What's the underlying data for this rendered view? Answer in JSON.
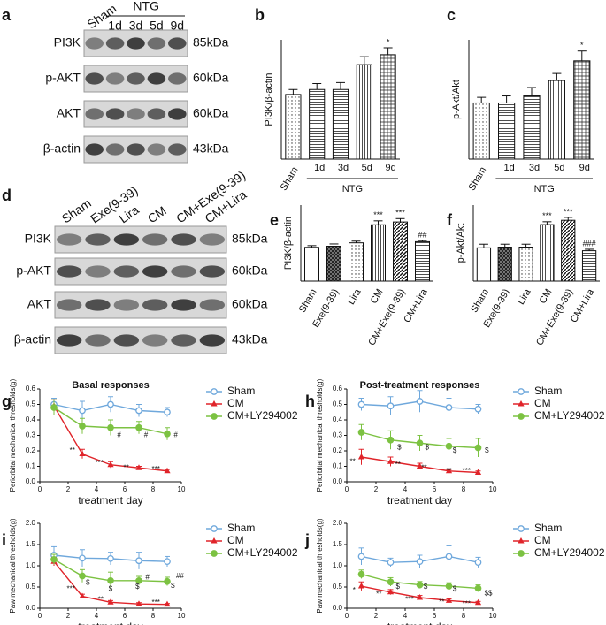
{
  "blots": [
    {
      "panel": "a",
      "lanes": [
        "Sham",
        "1d",
        "3d",
        "5d",
        "9d"
      ],
      "group": {
        "label": "NTG",
        "from": "1d",
        "to": "9d"
      },
      "rows": [
        {
          "protein": "PI3K",
          "size": "85kDa"
        },
        {
          "protein": "p-AKT",
          "size": "60kDa"
        },
        {
          "protein": "AKT",
          "size": "60kDa"
        },
        {
          "protein": "β-actin",
          "size": "43kDa"
        }
      ]
    },
    {
      "panel": "d",
      "lanes": [
        "Sham",
        "Exe(9-39)",
        "Lira",
        "CM",
        "CM+Exe(9-39)",
        "CM+Lira"
      ],
      "rows": [
        {
          "protein": "PI3K",
          "size": "85kDa"
        },
        {
          "protein": "p-AKT",
          "size": "60kDa"
        },
        {
          "protein": "AKT",
          "size": "60kDa"
        },
        {
          "protein": "β-actin",
          "size": "43kDa"
        }
      ]
    }
  ],
  "chart_data": [
    {
      "type": "bar",
      "panel": "b",
      "ylabel": "PI3K/β-actin",
      "categories": [
        "Sham",
        "1d",
        "3d",
        "5d",
        "9d"
      ],
      "values": [
        0.65,
        0.7,
        0.7,
        0.95,
        1.05
      ],
      "errors": [
        0.05,
        0.06,
        0.07,
        0.08,
        0.07
      ],
      "fills": [
        "dots",
        "hlines",
        "hlines",
        "vlines",
        "grid"
      ],
      "ylim": [
        0,
        1.2
      ],
      "group": {
        "label": "NTG",
        "from": "1d",
        "to": "9d"
      },
      "annotations": [
        {
          "text": "*",
          "category": "9d"
        }
      ]
    },
    {
      "type": "bar",
      "panel": "c",
      "ylabel": "p-Akt/Akt",
      "categories": [
        "Sham",
        "1d",
        "3d",
        "5d",
        "9d"
      ],
      "values": [
        0.4,
        0.4,
        0.45,
        0.56,
        0.7
      ],
      "errors": [
        0.04,
        0.05,
        0.06,
        0.05,
        0.07
      ],
      "fills": [
        "dots",
        "hlines",
        "hlines",
        "vlines",
        "grid"
      ],
      "ylim": [
        0,
        0.85
      ],
      "group": {
        "label": "NTG",
        "from": "1d",
        "to": "9d"
      },
      "annotations": [
        {
          "text": "*",
          "category": "9d"
        }
      ]
    },
    {
      "type": "bar",
      "panel": "e",
      "ylabel": "PI3K/β-actin",
      "categories": [
        "Sham",
        "Exe(9-39)",
        "Lira",
        "CM",
        "CM+Exe(9-39)",
        "CM+Lira"
      ],
      "values": [
        0.6,
        0.62,
        0.68,
        1.0,
        1.05,
        0.7
      ],
      "errors": [
        0.03,
        0.04,
        0.03,
        0.07,
        0.06,
        0.02
      ],
      "fills": [
        "white",
        "cross",
        "dots",
        "vlines",
        "diag",
        "hlines"
      ],
      "ylim": [
        0,
        1.35
      ],
      "annotations": [
        {
          "text": "***",
          "category": "CM"
        },
        {
          "text": "***",
          "category": "CM+Exe(9-39)"
        },
        {
          "text": "##",
          "category": "CM+Lira"
        }
      ]
    },
    {
      "type": "bar",
      "panel": "f",
      "ylabel": "p-Akt/Akt",
      "categories": [
        "Sham",
        "Exe(9-39)",
        "Lira",
        "CM",
        "CM+Exe(9-39)",
        "CM+Lira"
      ],
      "values": [
        0.46,
        0.47,
        0.47,
        0.78,
        0.84,
        0.42
      ],
      "errors": [
        0.05,
        0.04,
        0.04,
        0.04,
        0.04,
        0.02
      ],
      "fills": [
        "white",
        "cross",
        "dots",
        "vlines",
        "diag",
        "hlines"
      ],
      "ylim": [
        0,
        1.05
      ],
      "annotations": [
        {
          "text": "***",
          "category": "CM"
        },
        {
          "text": "***",
          "category": "CM+Exe(9-39)"
        },
        {
          "text": "###",
          "category": "CM+Lira"
        }
      ]
    },
    {
      "type": "line",
      "panel": "g",
      "title": "Basal responses",
      "xlabel": "treatment day",
      "ylabel": "Periorbital mechanical thresholds(g)",
      "x": [
        1,
        3,
        5,
        7,
        9
      ],
      "xlim": [
        0,
        10
      ],
      "xticks": [
        0,
        2,
        4,
        6,
        8,
        10
      ],
      "ylim": [
        0,
        0.6
      ],
      "yticks": [
        {
          "value": 0,
          "label": "0.0"
        },
        0.1,
        0.2,
        0.3,
        0.4,
        0.5,
        0.6
      ],
      "series": [
        {
          "name": "Sham",
          "color": "#6fa8dc",
          "marker": "circle-open",
          "values": [
            0.5,
            0.46,
            0.5,
            0.46,
            0.45
          ],
          "errors": [
            0.04,
            0.06,
            0.05,
            0.04,
            0.03
          ]
        },
        {
          "name": "CM",
          "color": "#e0242a",
          "marker": "triangle",
          "values": [
            0.49,
            0.18,
            0.11,
            0.09,
            0.07
          ],
          "errors": [
            0.04,
            0.03,
            0.02,
            0.01,
            0.01
          ]
        },
        {
          "name": "CM+LY294002",
          "color": "#7cc242",
          "marker": "circle",
          "values": [
            0.48,
            0.36,
            0.35,
            0.35,
            0.31
          ],
          "errors": [
            0.05,
            0.05,
            0.05,
            0.04,
            0.04
          ]
        }
      ],
      "annotations": [
        {
          "text": "**",
          "x": 2.3,
          "y": 0.2
        },
        {
          "text": "***",
          "x": 4.2,
          "y": 0.12
        },
        {
          "text": "**",
          "x": 6.1,
          "y": 0.09
        },
        {
          "text": "***",
          "x": 8.2,
          "y": 0.08
        },
        {
          "text": "#",
          "x": 5.6,
          "y": 0.3
        },
        {
          "text": "#",
          "x": 7.5,
          "y": 0.3
        },
        {
          "text": "#",
          "x": 9.6,
          "y": 0.3
        }
      ]
    },
    {
      "type": "line",
      "panel": "h",
      "title": "Post-treatment responses",
      "xlabel": "treatment day",
      "ylabel": "Periorbital mechanical thresholds(g)",
      "x": [
        1,
        3,
        5,
        7,
        9
      ],
      "xlim": [
        0,
        10
      ],
      "xticks": [
        0,
        2,
        4,
        6,
        8,
        10
      ],
      "ylim": [
        0,
        0.6
      ],
      "yticks": [
        {
          "value": 0,
          "label": "0.0"
        },
        0.1,
        0.2,
        0.3,
        0.4,
        0.5,
        0.6
      ],
      "series": [
        {
          "name": "Sham",
          "color": "#6fa8dc",
          "marker": "circle-open",
          "values": [
            0.5,
            0.49,
            0.52,
            0.48,
            0.47
          ],
          "errors": [
            0.04,
            0.06,
            0.07,
            0.06,
            0.03
          ]
        },
        {
          "name": "CM",
          "color": "#e0242a",
          "marker": "triangle",
          "values": [
            0.16,
            0.13,
            0.1,
            0.07,
            0.06
          ],
          "errors": [
            0.05,
            0.03,
            0.02,
            0.01,
            0.01
          ]
        },
        {
          "name": "CM+LY294002",
          "color": "#7cc242",
          "marker": "circle",
          "values": [
            0.32,
            0.27,
            0.25,
            0.23,
            0.22
          ],
          "errors": [
            0.05,
            0.06,
            0.05,
            0.05,
            0.06
          ]
        }
      ],
      "annotations": [
        {
          "text": "**",
          "x": 0.4,
          "y": 0.13
        },
        {
          "text": "**",
          "x": 3.5,
          "y": 0.11
        },
        {
          "text": "**",
          "x": 5.3,
          "y": 0.09
        },
        {
          "text": "**",
          "x": 7.0,
          "y": 0.07
        },
        {
          "text": "***",
          "x": 8.2,
          "y": 0.07
        },
        {
          "text": "$",
          "x": 3.6,
          "y": 0.22
        },
        {
          "text": "$",
          "x": 5.5,
          "y": 0.22
        },
        {
          "text": "$",
          "x": 7.4,
          "y": 0.2
        },
        {
          "text": "$",
          "x": 9.6,
          "y": 0.2
        }
      ]
    },
    {
      "type": "line",
      "panel": "i",
      "xlabel": "treatment day",
      "ylabel": "Paw mechanical thresholds(g)",
      "x": [
        1,
        3,
        5,
        7,
        9
      ],
      "xlim": [
        0,
        10
      ],
      "xticks": [
        0,
        2,
        4,
        6,
        8,
        10
      ],
      "ylim": [
        0,
        2
      ],
      "yticks": [
        {
          "value": 0,
          "label": "0.0"
        },
        0.5,
        {
          "value": 1,
          "label": "1.0"
        },
        1.5,
        {
          "value": 2,
          "label": "2.0"
        }
      ],
      "series": [
        {
          "name": "Sham",
          "color": "#6fa8dc",
          "marker": "circle-open",
          "values": [
            1.25,
            1.18,
            1.17,
            1.12,
            1.1
          ],
          "errors": [
            0.2,
            0.2,
            0.15,
            0.2,
            0.12
          ]
        },
        {
          "name": "CM",
          "color": "#e0242a",
          "marker": "triangle",
          "values": [
            1.1,
            0.28,
            0.14,
            0.1,
            0.09
          ],
          "errors": [
            0.1,
            0.05,
            0.04,
            0.03,
            0.02
          ]
        },
        {
          "name": "CM+LY294002",
          "color": "#7cc242",
          "marker": "circle",
          "values": [
            1.15,
            0.76,
            0.65,
            0.65,
            0.63
          ],
          "errors": [
            0.12,
            0.15,
            0.2,
            0.1,
            0.1
          ]
        }
      ],
      "annotations": [
        {
          "text": "***",
          "x": 2.2,
          "y": 0.45
        },
        {
          "text": "**",
          "x": 4.3,
          "y": 0.2
        },
        {
          "text": "***",
          "x": 8.2,
          "y": 0.13
        },
        {
          "text": "$",
          "x": 3.4,
          "y": 0.6
        },
        {
          "text": "$",
          "x": 5,
          "y": 0.45
        },
        {
          "text": "$",
          "x": 6.9,
          "y": 0.5
        },
        {
          "text": "#",
          "x": 7.6,
          "y": 0.72
        },
        {
          "text": "$",
          "x": 9.4,
          "y": 0.52
        },
        {
          "text": "##",
          "x": 9.9,
          "y": 0.75
        }
      ]
    },
    {
      "type": "line",
      "panel": "j",
      "xlabel": "treatment day",
      "ylabel": "Paw mechanical thresholds(g)",
      "x": [
        1,
        3,
        5,
        7,
        9
      ],
      "xlim": [
        0,
        10
      ],
      "xticks": [
        0,
        2,
        4,
        6,
        8,
        10
      ],
      "ylim": [
        0,
        2
      ],
      "yticks": [
        {
          "value": 0,
          "label": "0.0"
        },
        0.5,
        {
          "value": 1,
          "label": "1.0"
        },
        1.5,
        {
          "value": 2,
          "label": "2.0"
        }
      ],
      "series": [
        {
          "name": "Sham",
          "color": "#6fa8dc",
          "marker": "circle-open",
          "values": [
            1.22,
            1.08,
            1.1,
            1.22,
            1.08
          ],
          "errors": [
            0.2,
            0.1,
            0.15,
            0.25,
            0.12
          ]
        },
        {
          "name": "CM",
          "color": "#e0242a",
          "marker": "triangle",
          "values": [
            0.52,
            0.38,
            0.25,
            0.18,
            0.13
          ],
          "errors": [
            0.1,
            0.06,
            0.05,
            0.04,
            0.03
          ]
        },
        {
          "name": "CM+LY294002",
          "color": "#7cc242",
          "marker": "circle",
          "values": [
            0.8,
            0.62,
            0.55,
            0.52,
            0.47
          ],
          "errors": [
            0.1,
            0.1,
            0.08,
            0.08,
            0.08
          ]
        }
      ],
      "annotations": [
        {
          "text": "*",
          "x": 0.5,
          "y": 0.42
        },
        {
          "text": "**",
          "x": 2.2,
          "y": 0.32
        },
        {
          "text": "***",
          "x": 4.3,
          "y": 0.2
        },
        {
          "text": "**",
          "x": 6.5,
          "y": 0.14
        },
        {
          "text": "***",
          "x": 8.2,
          "y": 0.1
        },
        {
          "text": "$",
          "x": 3.5,
          "y": 0.5
        },
        {
          "text": "$",
          "x": 5.4,
          "y": 0.5
        },
        {
          "text": "$",
          "x": 7.4,
          "y": 0.45
        },
        {
          "text": "$$",
          "x": 9.7,
          "y": 0.35
        }
      ]
    }
  ]
}
